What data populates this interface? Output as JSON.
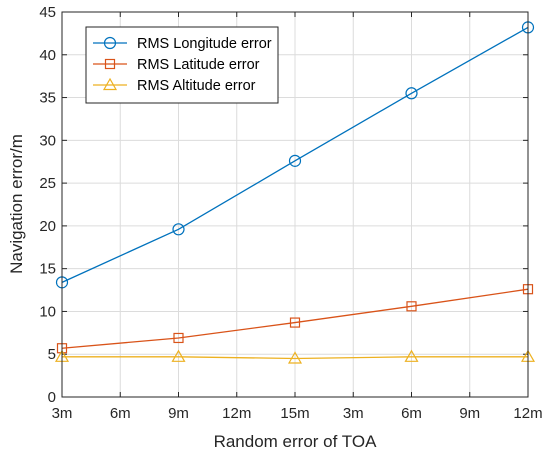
{
  "chart_data": {
    "type": "line",
    "xlabel": "Random error of TOA",
    "ylabel": "Navigation  error/m",
    "categories": [
      "3m",
      "6m",
      "9m",
      "12m",
      "15m",
      "3m",
      "6m",
      "9m",
      "12m"
    ],
    "x_values": [
      0,
      1,
      2,
      3,
      4,
      5,
      6,
      7,
      8
    ],
    "y_ticks": [
      0,
      5,
      10,
      15,
      20,
      25,
      30,
      35,
      40,
      45
    ],
    "ylim": [
      0,
      45
    ],
    "xlim": [
      0,
      8
    ],
    "grid": true,
    "legend_position": "top-left",
    "series": [
      {
        "name": "RMS Longitude error",
        "color": "#0072BD",
        "marker": "circle",
        "x": [
          0,
          2,
          4,
          6,
          8
        ],
        "values": [
          13.4,
          19.6,
          27.6,
          35.5,
          43.2
        ]
      },
      {
        "name": "RMS Latitude error",
        "color": "#D95319",
        "marker": "square",
        "x": [
          0,
          2,
          4,
          6,
          8
        ],
        "values": [
          5.7,
          6.9,
          8.7,
          10.6,
          12.6
        ]
      },
      {
        "name": "RMS Altitude error",
        "color": "#EDB120",
        "marker": "triangle",
        "x": [
          0,
          2,
          4,
          6,
          8
        ],
        "values": [
          4.7,
          4.7,
          4.5,
          4.7,
          4.7
        ]
      }
    ]
  }
}
